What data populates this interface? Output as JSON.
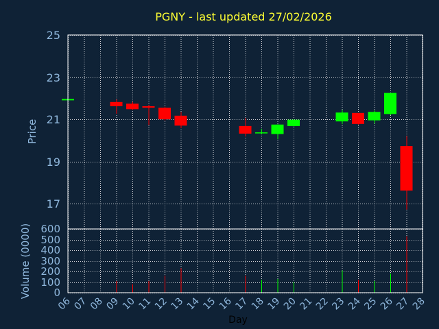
{
  "chart_data": {
    "type": "candlestick",
    "title": "PGNY - last updated 27/02/2026",
    "xlabel": "Day",
    "price_ylabel": "Price",
    "volume_ylabel": "Volume (0000)",
    "x_ticks": [
      "06",
      "07",
      "08",
      "09",
      "10",
      "11",
      "12",
      "13",
      "14",
      "15",
      "16",
      "17",
      "18",
      "19",
      "20",
      "21",
      "22",
      "23",
      "24",
      "25",
      "26",
      "27",
      "28"
    ],
    "price_ylim": [
      15.8,
      25
    ],
    "price_yticks": [
      17,
      19,
      21,
      23,
      25
    ],
    "volume_ylim": [
      0,
      600
    ],
    "volume_yticks": [
      0,
      100,
      200,
      300,
      400,
      500,
      600
    ],
    "grid": true,
    "colors": {
      "background": "#0f2236",
      "up": "#00ff00",
      "down": "#ff0000",
      "grid": "#ffffff",
      "axis": "#8fb7dc",
      "title": "#ffff33"
    },
    "candles": [
      {
        "day": "06",
        "open": 21.93,
        "high": 21.93,
        "low": 21.93,
        "close": 21.93,
        "volume": 0
      },
      {
        "day": "09",
        "open": 21.82,
        "high": 21.95,
        "low": 21.26,
        "close": 21.62,
        "volume": 110
      },
      {
        "day": "10",
        "open": 21.74,
        "high": 21.83,
        "low": 21.45,
        "close": 21.48,
        "volume": 80
      },
      {
        "day": "11",
        "open": 21.62,
        "high": 21.68,
        "low": 20.73,
        "close": 21.55,
        "volume": 110
      },
      {
        "day": "12",
        "open": 21.55,
        "high": 21.6,
        "low": 20.95,
        "close": 21.0,
        "volume": 160
      },
      {
        "day": "13",
        "open": 21.17,
        "high": 21.35,
        "low": 20.58,
        "close": 20.7,
        "volume": 230
      },
      {
        "day": "17",
        "open": 20.68,
        "high": 21.06,
        "low": 20.18,
        "close": 20.32,
        "volume": 160
      },
      {
        "day": "18",
        "open": 20.33,
        "high": 20.55,
        "low": 20.3,
        "close": 20.38,
        "volume": 120
      },
      {
        "day": "19",
        "open": 20.3,
        "high": 20.76,
        "low": 20.05,
        "close": 20.75,
        "volume": 130
      },
      {
        "day": "20",
        "open": 20.68,
        "high": 21.0,
        "low": 20.65,
        "close": 20.98,
        "volume": 100
      },
      {
        "day": "23",
        "open": 20.9,
        "high": 21.45,
        "low": 20.77,
        "close": 21.32,
        "volume": 210
      },
      {
        "day": "24",
        "open": 21.3,
        "high": 21.3,
        "low": 20.75,
        "close": 20.78,
        "volume": 120
      },
      {
        "day": "25",
        "open": 20.95,
        "high": 21.42,
        "low": 20.8,
        "close": 21.35,
        "volume": 110
      },
      {
        "day": "26",
        "open": 21.25,
        "high": 22.25,
        "low": 21.2,
        "close": 22.25,
        "volume": 180
      },
      {
        "day": "27",
        "open": 19.73,
        "high": 20.2,
        "low": 16.72,
        "close": 17.62,
        "volume": 530
      }
    ]
  }
}
